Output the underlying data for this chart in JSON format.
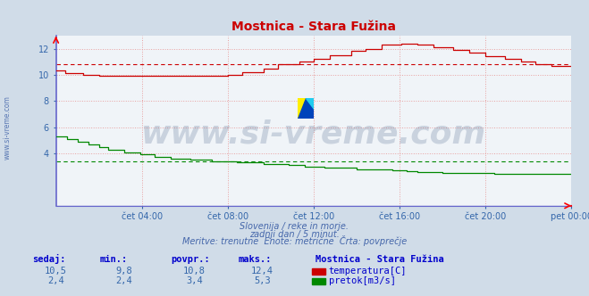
{
  "title": "Mostnica - Stara Fužina",
  "bg_color": "#d0dce8",
  "plot_bg_color": "#f0f4f8",
  "grid_color": "#e8a0a0",
  "temp_color": "#cc0000",
  "flow_color": "#008800",
  "avg_temp_color": "#cc0000",
  "avg_flow_color": "#008800",
  "spine_color": "#6666cc",
  "x_tick_labels": [
    "čet 04:00",
    "čet 08:00",
    "čet 12:00",
    "čet 16:00",
    "čet 20:00",
    "pet 00:00"
  ],
  "x_tick_positions": [
    0.1667,
    0.3333,
    0.5,
    0.6667,
    0.8333,
    1.0
  ],
  "y_ticks": [
    4,
    6,
    8,
    10,
    12
  ],
  "ylim": [
    0,
    13.0
  ],
  "xlim": [
    0,
    1
  ],
  "temp_avg": 10.8,
  "flow_avg": 3.4,
  "watermark_text": "www.si-vreme.com",
  "watermark_color": "#1a3a6a",
  "watermark_alpha": 0.18,
  "watermark_fontsize": 26,
  "subtitle_lines": [
    "Slovenija / reke in morje.",
    "zadnji dan / 5 minut.",
    "Meritve: trenutne  Enote: metrične  Črta: povprečje"
  ],
  "subtitle_color": "#4466aa",
  "table_headers": [
    "sedaj:",
    "min.:",
    "povpr.:",
    "maks.:"
  ],
  "table_header_color": "#0000cc",
  "table_values_color": "#3366aa",
  "station_name": "Mostnica - Stara Fužina",
  "station_color": "#0000cc",
  "row1_values": [
    "10,5",
    "9,8",
    "10,8",
    "12,4"
  ],
  "row2_values": [
    "2,4",
    "2,4",
    "3,4",
    "5,3"
  ],
  "temp_label": "temperatura[C]",
  "flow_label": "pretok[m3/s]",
  "left_label": "www.si-vreme.com",
  "left_label_color": "#4466aa",
  "tick_color": "#3366aa",
  "tick_fontsize": 7
}
